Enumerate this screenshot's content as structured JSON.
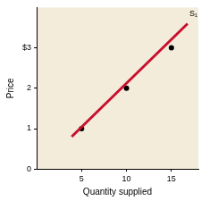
{
  "chart_data": {
    "type": "line",
    "x_label": "Quantity supplied",
    "y_label": "Price",
    "xlim": [
      0,
      18
    ],
    "xticks": [
      5,
      10,
      15
    ],
    "ylim": [
      0,
      4
    ],
    "yticks": [
      0,
      1,
      2,
      {
        "value": 3,
        "label": "$3"
      }
    ],
    "grid": false,
    "series": [
      {
        "name": "S₁",
        "type": "line",
        "color": "#c8102e",
        "x": [
          3.9,
          16.8
        ],
        "values": [
          0.8,
          3.6
        ]
      },
      {
        "type": "scatter",
        "marker": "circle",
        "color": "#000000",
        "x": [
          5,
          10,
          15
        ],
        "values": [
          1,
          2,
          3
        ]
      }
    ]
  }
}
